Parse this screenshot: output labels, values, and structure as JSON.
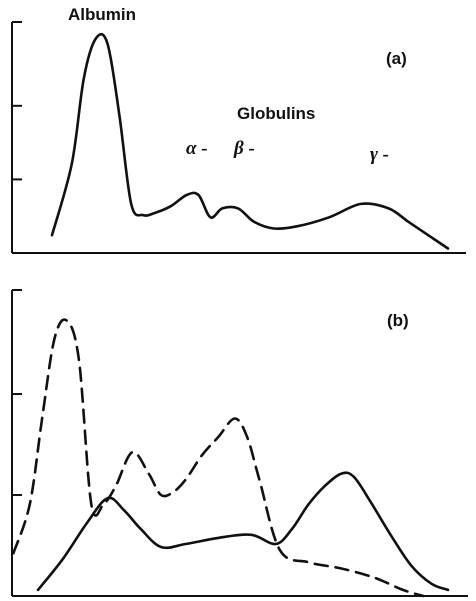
{
  "chart_data": [
    {
      "type": "line",
      "panel_label": "(a)",
      "annotations": {
        "albumin": "Albumin",
        "globulins": "Globulins",
        "alpha": "α -",
        "beta": "β -",
        "gamma": "γ -"
      },
      "xlim": [
        0,
        100
      ],
      "ylim": [
        0,
        100
      ],
      "yticks": [
        0,
        33,
        66,
        100
      ],
      "series": [
        {
          "style": "solid",
          "x": [
            0,
            5,
            8,
            11,
            14,
            17,
            20,
            23,
            26,
            30,
            34,
            37,
            40,
            43,
            47,
            51,
            56,
            62,
            70,
            78,
            85,
            90,
            95,
            100
          ],
          "y": [
            8,
            40,
            78,
            96,
            94,
            62,
            22,
            17,
            18,
            21,
            26,
            26,
            16,
            20,
            20,
            14,
            11,
            12,
            16,
            22,
            20,
            14,
            8,
            2
          ]
        }
      ]
    },
    {
      "type": "line",
      "panel_label": "(b)",
      "xlim": [
        0,
        100
      ],
      "ylim": [
        0,
        100
      ],
      "yticks": [
        0,
        33,
        66,
        100
      ],
      "series": [
        {
          "style": "dashed",
          "x": [
            0,
            4,
            7,
            10,
            13,
            16,
            19,
            22,
            25,
            29,
            33,
            36,
            39,
            42,
            46,
            50,
            54,
            57,
            60,
            65,
            72,
            80,
            88,
            95,
            100
          ],
          "y": [
            14,
            30,
            58,
            84,
            90,
            77,
            30,
            30,
            36,
            47,
            40,
            33,
            34,
            38,
            46,
            52,
            58,
            52,
            38,
            15,
            11,
            9,
            6,
            2,
            0
          ],
          "x_offset": -6
        },
        {
          "style": "solid",
          "x": [
            0,
            6,
            12,
            17,
            21,
            25,
            30,
            36,
            44,
            52,
            58,
            62,
            66,
            70,
            74,
            77,
            81,
            86,
            91,
            96,
            100
          ],
          "y": [
            2,
            12,
            24,
            32,
            28,
            22,
            16,
            17,
            19,
            20,
            17,
            22,
            30,
            36,
            40,
            39,
            31,
            20,
            10,
            4,
            2
          ]
        }
      ]
    }
  ]
}
